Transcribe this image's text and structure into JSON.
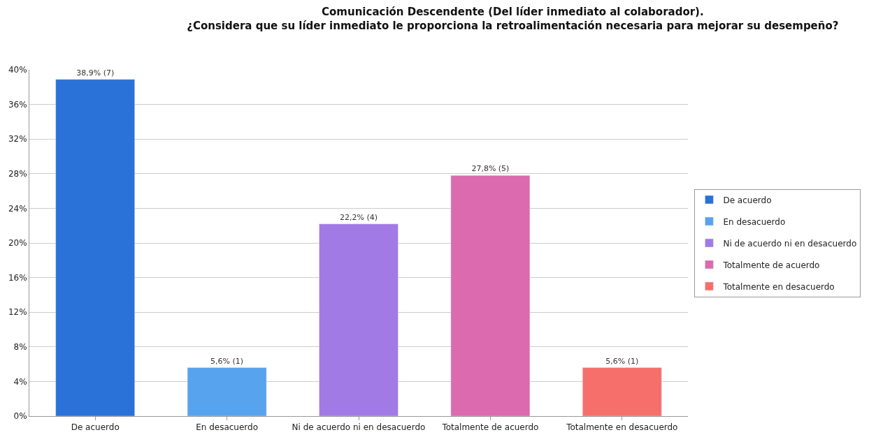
{
  "chart_data": {
    "type": "bar",
    "title": "Comunicación Descendente (Del líder inmediato al colaborador).\n¿Considera que su líder inmediato le proporciona la retroalimentación necesaria para mejorar su desempeño?",
    "categories": [
      "De acuerdo",
      "En desacuerdo",
      "Ni de acuerdo ni en desacuerdo",
      "Totalmente de acuerdo",
      "Totalmente en desacuerdo"
    ],
    "series": [
      {
        "name": "De acuerdo",
        "color": "#2a71d8",
        "values": [
          38.9,
          null,
          null,
          null,
          null
        ],
        "value_labels": [
          "38,9% (7)",
          null,
          null,
          null,
          null
        ]
      },
      {
        "name": "En desacuerdo",
        "color": "#58a3ed",
        "values": [
          null,
          5.6,
          null,
          null,
          null
        ],
        "value_labels": [
          null,
          "5,6% (1)",
          null,
          null,
          null
        ]
      },
      {
        "name": "Ni de acuerdo ni en desacuerdo",
        "color": "#a27ae5",
        "values": [
          null,
          null,
          22.2,
          null,
          null
        ],
        "value_labels": [
          null,
          null,
          "22,2% (4)",
          null,
          null
        ]
      },
      {
        "name": "Totalmente de acuerdo",
        "color": "#db6aae",
        "values": [
          null,
          null,
          null,
          27.8,
          null
        ],
        "value_labels": [
          null,
          null,
          null,
          "27,8% (5)",
          null
        ]
      },
      {
        "name": "Totalmente en desacuerdo",
        "color": "#f66f6b",
        "values": [
          null,
          null,
          null,
          null,
          5.6
        ],
        "value_labels": [
          null,
          null,
          null,
          null,
          "5,6% (1)"
        ]
      }
    ],
    "ylim": [
      0,
      40
    ],
    "yticks": [
      {
        "value": 0,
        "label": "0%"
      },
      {
        "value": 4,
        "label": "4%"
      },
      {
        "value": 8,
        "label": "8%"
      },
      {
        "value": 12,
        "label": "12%"
      },
      {
        "value": 16,
        "label": "16%"
      },
      {
        "value": 20,
        "label": "20%"
      },
      {
        "value": 24,
        "label": "24%"
      },
      {
        "value": 28,
        "label": "28%"
      },
      {
        "value": 32,
        "label": "32%"
      },
      {
        "value": 36,
        "label": "36%"
      },
      {
        "value": 40,
        "label": "40%"
      }
    ],
    "grid": "y",
    "legend": "right"
  }
}
